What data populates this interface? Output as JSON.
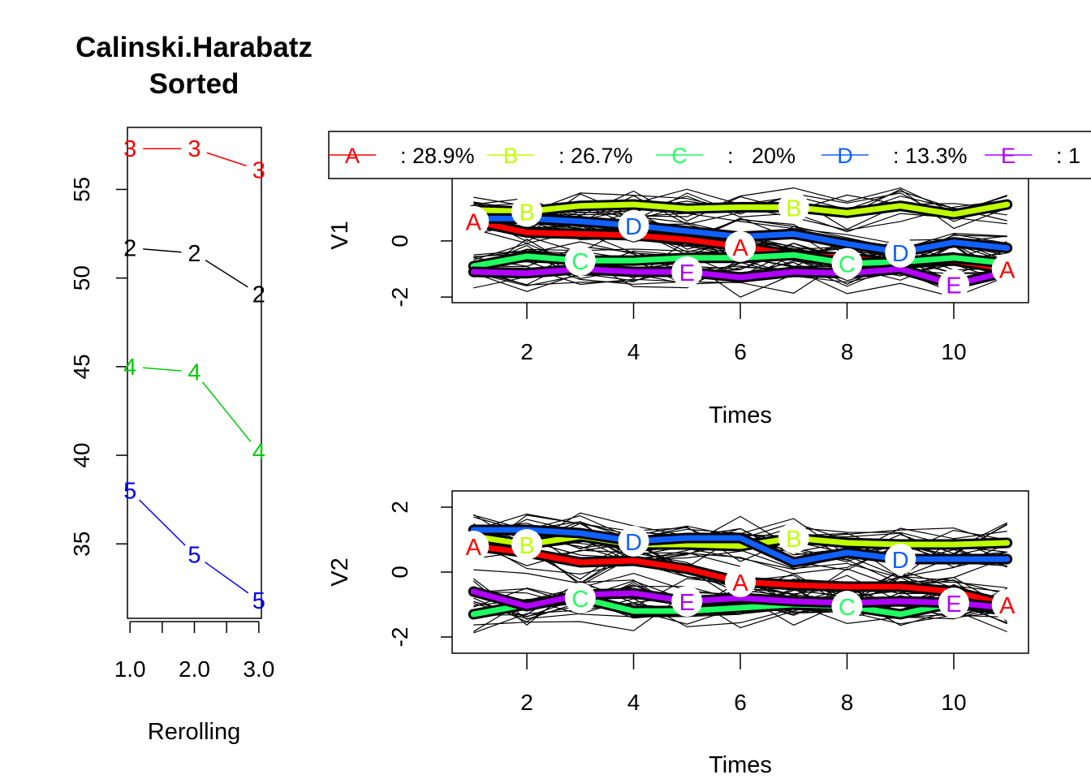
{
  "chart_data": [
    {
      "type": "line",
      "title": [
        "Calinski.Harabatz",
        "Sorted"
      ],
      "xlabel": "Rerolling",
      "ylabel": "",
      "x": [
        1,
        2,
        3
      ],
      "xticks": [
        1,
        1.5,
        2,
        2.5,
        3
      ],
      "xtick_labels": [
        {
          "v": 1,
          "t": "1.0"
        },
        {
          "v": 2,
          "t": "2.0"
        },
        {
          "v": 3,
          "t": "3.0"
        }
      ],
      "xlim": [
        0.96,
        3.04
      ],
      "ylim": [
        30.8,
        58.5
      ],
      "yticks": [
        35,
        40,
        45,
        50,
        55
      ],
      "series": [
        {
          "name": "3",
          "color": "#ff0000",
          "values": [
            57.3,
            57.3,
            56.1
          ]
        },
        {
          "name": "2",
          "color": "#000000",
          "values": [
            51.7,
            51.4,
            49.1
          ]
        },
        {
          "name": "4",
          "color": "#00cd00",
          "values": [
            45.0,
            44.7,
            40.2
          ]
        },
        {
          "name": "5",
          "color": "#0000ff",
          "values": [
            38.0,
            34.4,
            31.8
          ]
        }
      ]
    },
    {
      "type": "line",
      "ylabel": "V1",
      "xlabel": "Times",
      "x": [
        1,
        2,
        3,
        4,
        5,
        6,
        7,
        8,
        9,
        10,
        11
      ],
      "xticks": [
        2,
        4,
        6,
        8,
        10
      ],
      "xlim": [
        0.6,
        11.4
      ],
      "ylim": [
        -2.2,
        2.6
      ],
      "yticks": [
        -2,
        0
      ],
      "ytick_labels": [
        "-2",
        "0"
      ],
      "series": [
        {
          "name": "A",
          "color": "#ff0000",
          "values": [
            0.7,
            0.3,
            0.25,
            0.2,
            0.05,
            -0.2,
            -0.5,
            -0.6,
            -0.8,
            -0.7,
            -1.0
          ]
        },
        {
          "name": "B",
          "color": "#c0ff00",
          "values": [
            1.1,
            1.05,
            1.25,
            1.3,
            1.15,
            1.2,
            1.2,
            1.0,
            1.25,
            0.95,
            1.3
          ]
        },
        {
          "name": "C",
          "color": "#20ff60",
          "values": [
            -0.9,
            -0.55,
            -0.7,
            -0.7,
            -0.6,
            -0.6,
            -0.5,
            -0.8,
            -0.75,
            -0.6,
            -0.8
          ]
        },
        {
          "name": "D",
          "color": "#1060ff",
          "values": [
            0.8,
            0.8,
            0.7,
            0.55,
            0.35,
            0.15,
            0.25,
            -0.1,
            -0.4,
            -0.05,
            -0.25
          ]
        },
        {
          "name": "E",
          "color": "#b000ff",
          "values": [
            -1.1,
            -1.15,
            -1.0,
            -1.1,
            -1.1,
            -1.3,
            -1.1,
            -1.15,
            -1.0,
            -1.55,
            -1.1
          ]
        }
      ],
      "point_labels": [
        {
          "series": "A",
          "x": [
            1,
            6,
            11
          ]
        },
        {
          "series": "B",
          "x": [
            2,
            7
          ]
        },
        {
          "series": "C",
          "x": [
            3,
            8
          ]
        },
        {
          "series": "D",
          "x": [
            4,
            9
          ]
        },
        {
          "series": "E",
          "x": [
            5,
            10
          ]
        }
      ],
      "legend": {
        "placement": "top",
        "items": [
          {
            "key": "A",
            "text": ": 28.9%",
            "color": "#ff0000"
          },
          {
            "key": "B",
            "text": ": 26.7%",
            "color": "#c0ff00"
          },
          {
            "key": "C",
            "text": ":   20%",
            "color": "#20ff60"
          },
          {
            "key": "D",
            "text": ": 13.3%",
            "color": "#1060ff"
          },
          {
            "key": "E",
            "text": ": 1",
            "color": "#b000ff"
          }
        ]
      }
    },
    {
      "type": "line",
      "ylabel": "V2",
      "xlabel": "Times",
      "x": [
        1,
        2,
        3,
        4,
        5,
        6,
        7,
        8,
        9,
        10,
        11
      ],
      "xticks": [
        2,
        4,
        6,
        8,
        10
      ],
      "xlim": [
        0.6,
        11.4
      ],
      "ylim": [
        -2.5,
        2.5
      ],
      "yticks": [
        -2,
        0,
        2
      ],
      "ytick_labels": [
        "-2",
        "0",
        "2"
      ],
      "series": [
        {
          "name": "A",
          "color": "#ff0000",
          "values": [
            0.8,
            0.6,
            0.3,
            0.35,
            0.1,
            -0.3,
            -0.4,
            -0.45,
            -0.45,
            -0.6,
            -1.0
          ]
        },
        {
          "name": "B",
          "color": "#c0ff00",
          "values": [
            1.1,
            0.85,
            1.1,
            0.85,
            0.85,
            0.8,
            1.05,
            0.9,
            0.85,
            0.85,
            0.9
          ]
        },
        {
          "name": "C",
          "color": "#20ff60",
          "values": [
            -1.3,
            -1.0,
            -0.8,
            -1.2,
            -1.2,
            -1.1,
            -1.0,
            -1.05,
            -1.3,
            -0.95,
            -1.2
          ]
        },
        {
          "name": "D",
          "color": "#1060ff",
          "values": [
            1.3,
            1.3,
            1.2,
            0.95,
            1.05,
            1.05,
            0.3,
            0.6,
            0.4,
            0.4,
            0.4
          ]
        },
        {
          "name": "E",
          "color": "#b000ff",
          "values": [
            -0.6,
            -1.05,
            -0.7,
            -0.65,
            -0.9,
            -0.8,
            -0.9,
            -0.95,
            -0.9,
            -0.95,
            -1.1
          ]
        }
      ],
      "point_labels": [
        {
          "series": "A",
          "x": [
            1,
            6,
            11
          ]
        },
        {
          "series": "B",
          "x": [
            2,
            7
          ]
        },
        {
          "series": "C",
          "x": [
            3,
            8
          ]
        },
        {
          "series": "D",
          "x": [
            4,
            9
          ]
        },
        {
          "series": "E",
          "x": [
            5,
            10
          ]
        }
      ]
    }
  ]
}
